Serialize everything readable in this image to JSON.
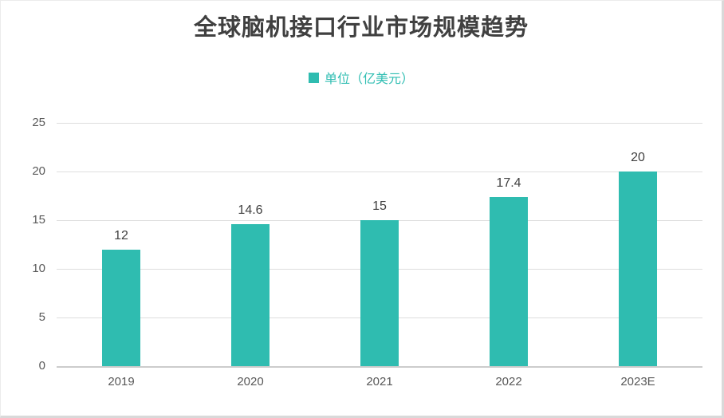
{
  "chart_data": {
    "type": "bar",
    "title": "全球脑机接口行业市场规模趋势",
    "legend": [
      "单位（亿美元）"
    ],
    "legend_position": "top",
    "categories": [
      "2019",
      "2020",
      "2021",
      "2022",
      "2023E"
    ],
    "values": [
      12,
      14.6,
      15,
      17.4,
      20
    ],
    "data_labels": [
      "12",
      "14.6",
      "15",
      "17.4",
      "20"
    ],
    "ylim": [
      0,
      25
    ],
    "yticks": [
      25,
      20,
      15,
      10,
      5,
      0
    ],
    "grid": true,
    "colors": {
      "bar": "#2fbcb0",
      "legend_text": "#31beb3",
      "title_text": "#404040",
      "axis_text": "#595959",
      "gridline": "#dedede",
      "axis_line": "#cccccc"
    }
  }
}
